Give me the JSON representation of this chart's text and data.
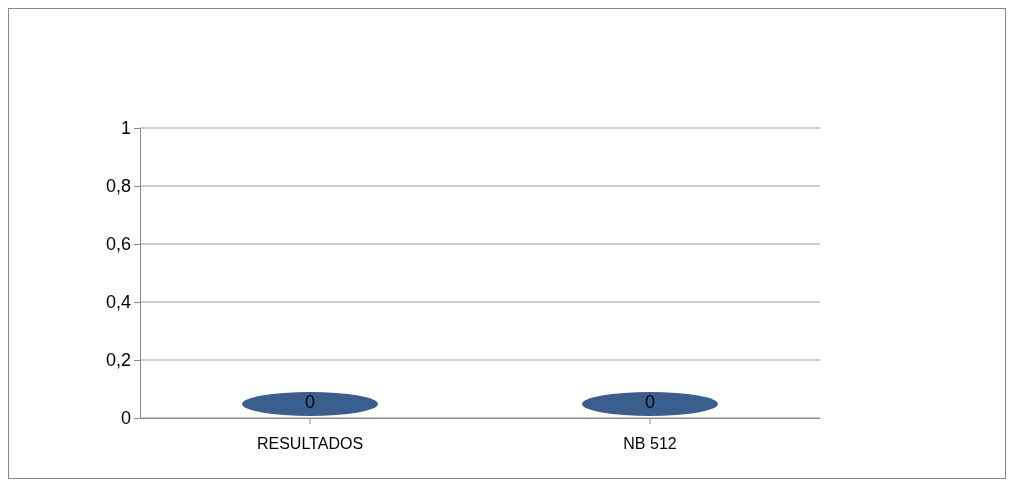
{
  "chart_data": {
    "type": "bar",
    "categories": [
      "RESULTADOS",
      "NB 512"
    ],
    "values": [
      0,
      0
    ],
    "color": "#3a5f8f",
    "ylim": [
      0,
      1
    ],
    "yticks": [
      0,
      {
        "value": 0.2,
        "label": "0,2"
      },
      {
        "value": 0.4,
        "label": "0,4"
      },
      {
        "value": 0.6,
        "label": "0,6"
      },
      {
        "value": 0.8,
        "label": "0,8"
      },
      1
    ],
    "grid": true,
    "data_labels": true
  }
}
